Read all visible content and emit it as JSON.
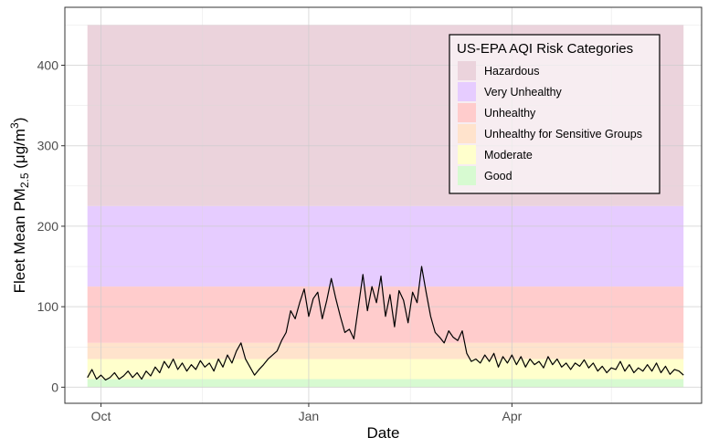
{
  "chart_data": {
    "type": "line",
    "title": "",
    "xlabel": "Date",
    "ylabel": {
      "prefix": "Fleet Mean  PM",
      "subscript": "2.5",
      "unit_open": " (μg/m",
      "unit_sup": "3",
      "unit_close": ")"
    },
    "ylim": [
      -20,
      472
    ],
    "yticks": [
      0,
      100,
      200,
      300,
      400
    ],
    "xlim": [
      "2020-09-15",
      "2021-06-24"
    ],
    "xticks": [
      {
        "date": "2020-10-01",
        "label": "Oct"
      },
      {
        "date": "2021-01-01",
        "label": "Jan"
      },
      {
        "date": "2021-04-01",
        "label": "Apr"
      }
    ],
    "x_minor": [
      "2020-11-15",
      "2021-02-15",
      "2021-05-15"
    ],
    "grid": true,
    "legend": {
      "title": "US-EPA AQI Risk Categories",
      "placement": "top-right"
    },
    "bands": [
      {
        "name": "Hazardous",
        "range": [
          225,
          450
        ],
        "color": "#ebd3dc"
      },
      {
        "name": "Very Unhealthy",
        "range": [
          125,
          225
        ],
        "color": "#e6ccff"
      },
      {
        "name": "Unhealthy",
        "range": [
          55,
          125
        ],
        "color": "#ffcccc"
      },
      {
        "name": "Unhealthy for Sensitive Groups",
        "range": [
          35,
          55
        ],
        "color": "#ffe3cc"
      },
      {
        "name": "Moderate",
        "range": [
          10,
          35
        ],
        "color": "#ffffcc"
      },
      {
        "name": "Good",
        "range": [
          0,
          10
        ],
        "color": "#d7fad1"
      }
    ],
    "series": [
      {
        "color": "#000000",
        "points": [
          [
            "2020-09-25",
            12
          ],
          [
            "2020-09-27",
            22
          ],
          [
            "2020-09-29",
            10
          ],
          [
            "2020-10-01",
            15
          ],
          [
            "2020-10-03",
            9
          ],
          [
            "2020-10-05",
            12
          ],
          [
            "2020-10-07",
            18
          ],
          [
            "2020-10-09",
            10
          ],
          [
            "2020-10-11",
            14
          ],
          [
            "2020-10-13",
            20
          ],
          [
            "2020-10-15",
            12
          ],
          [
            "2020-10-17",
            18
          ],
          [
            "2020-10-19",
            10
          ],
          [
            "2020-10-21",
            20
          ],
          [
            "2020-10-23",
            14
          ],
          [
            "2020-10-25",
            25
          ],
          [
            "2020-10-27",
            18
          ],
          [
            "2020-10-29",
            32
          ],
          [
            "2020-10-31",
            24
          ],
          [
            "2020-11-02",
            35
          ],
          [
            "2020-11-04",
            22
          ],
          [
            "2020-11-06",
            30
          ],
          [
            "2020-11-08",
            20
          ],
          [
            "2020-11-10",
            28
          ],
          [
            "2020-11-12",
            22
          ],
          [
            "2020-11-14",
            33
          ],
          [
            "2020-11-16",
            25
          ],
          [
            "2020-11-18",
            30
          ],
          [
            "2020-11-20",
            20
          ],
          [
            "2020-11-22",
            35
          ],
          [
            "2020-11-24",
            25
          ],
          [
            "2020-11-26",
            40
          ],
          [
            "2020-11-28",
            30
          ],
          [
            "2020-11-30",
            45
          ],
          [
            "2020-12-02",
            55
          ],
          [
            "2020-12-04",
            35
          ],
          [
            "2020-12-06",
            25
          ],
          [
            "2020-12-08",
            15
          ],
          [
            "2020-12-10",
            22
          ],
          [
            "2020-12-12",
            28
          ],
          [
            "2020-12-14",
            35
          ],
          [
            "2020-12-16",
            40
          ],
          [
            "2020-12-18",
            45
          ],
          [
            "2020-12-20",
            58
          ],
          [
            "2020-12-22",
            68
          ],
          [
            "2020-12-24",
            95
          ],
          [
            "2020-12-26",
            85
          ],
          [
            "2020-12-28",
            105
          ],
          [
            "2020-12-30",
            122
          ],
          [
            "2021-01-01",
            88
          ],
          [
            "2021-01-03",
            110
          ],
          [
            "2021-01-05",
            118
          ],
          [
            "2021-01-07",
            85
          ],
          [
            "2021-01-09",
            108
          ],
          [
            "2021-01-11",
            135
          ],
          [
            "2021-01-13",
            110
          ],
          [
            "2021-01-15",
            88
          ],
          [
            "2021-01-17",
            68
          ],
          [
            "2021-01-19",
            72
          ],
          [
            "2021-01-21",
            60
          ],
          [
            "2021-01-23",
            100
          ],
          [
            "2021-01-25",
            140
          ],
          [
            "2021-01-27",
            95
          ],
          [
            "2021-01-29",
            125
          ],
          [
            "2021-01-31",
            105
          ],
          [
            "2021-02-02",
            138
          ],
          [
            "2021-02-04",
            88
          ],
          [
            "2021-02-06",
            115
          ],
          [
            "2021-02-08",
            75
          ],
          [
            "2021-02-10",
            120
          ],
          [
            "2021-02-12",
            108
          ],
          [
            "2021-02-14",
            80
          ],
          [
            "2021-02-16",
            118
          ],
          [
            "2021-02-18",
            105
          ],
          [
            "2021-02-20",
            150
          ],
          [
            "2021-02-22",
            118
          ],
          [
            "2021-02-24",
            88
          ],
          [
            "2021-02-26",
            68
          ],
          [
            "2021-02-28",
            62
          ],
          [
            "2021-03-02",
            55
          ],
          [
            "2021-03-04",
            70
          ],
          [
            "2021-03-06",
            62
          ],
          [
            "2021-03-08",
            58
          ],
          [
            "2021-03-10",
            70
          ],
          [
            "2021-03-12",
            42
          ],
          [
            "2021-03-14",
            32
          ],
          [
            "2021-03-16",
            35
          ],
          [
            "2021-03-18",
            30
          ],
          [
            "2021-03-20",
            40
          ],
          [
            "2021-03-22",
            32
          ],
          [
            "2021-03-24",
            42
          ],
          [
            "2021-03-26",
            25
          ],
          [
            "2021-03-28",
            38
          ],
          [
            "2021-03-30",
            30
          ],
          [
            "2021-04-01",
            40
          ],
          [
            "2021-04-03",
            28
          ],
          [
            "2021-04-05",
            38
          ],
          [
            "2021-04-07",
            25
          ],
          [
            "2021-04-09",
            35
          ],
          [
            "2021-04-11",
            28
          ],
          [
            "2021-04-13",
            32
          ],
          [
            "2021-04-15",
            24
          ],
          [
            "2021-04-17",
            38
          ],
          [
            "2021-04-19",
            28
          ],
          [
            "2021-04-21",
            35
          ],
          [
            "2021-04-23",
            25
          ],
          [
            "2021-04-25",
            30
          ],
          [
            "2021-04-27",
            22
          ],
          [
            "2021-04-29",
            30
          ],
          [
            "2021-05-01",
            26
          ],
          [
            "2021-05-03",
            34
          ],
          [
            "2021-05-05",
            24
          ],
          [
            "2021-05-07",
            30
          ],
          [
            "2021-05-09",
            20
          ],
          [
            "2021-05-11",
            26
          ],
          [
            "2021-05-13",
            18
          ],
          [
            "2021-05-15",
            24
          ],
          [
            "2021-05-17",
            22
          ],
          [
            "2021-05-19",
            32
          ],
          [
            "2021-05-21",
            20
          ],
          [
            "2021-05-23",
            28
          ],
          [
            "2021-05-25",
            18
          ],
          [
            "2021-05-27",
            24
          ],
          [
            "2021-05-29",
            20
          ],
          [
            "2021-05-31",
            28
          ],
          [
            "2021-06-02",
            20
          ],
          [
            "2021-06-04",
            30
          ],
          [
            "2021-06-06",
            18
          ],
          [
            "2021-06-08",
            26
          ],
          [
            "2021-06-10",
            16
          ],
          [
            "2021-06-12",
            22
          ],
          [
            "2021-06-14",
            20
          ],
          [
            "2021-06-16",
            15
          ]
        ]
      }
    ]
  }
}
